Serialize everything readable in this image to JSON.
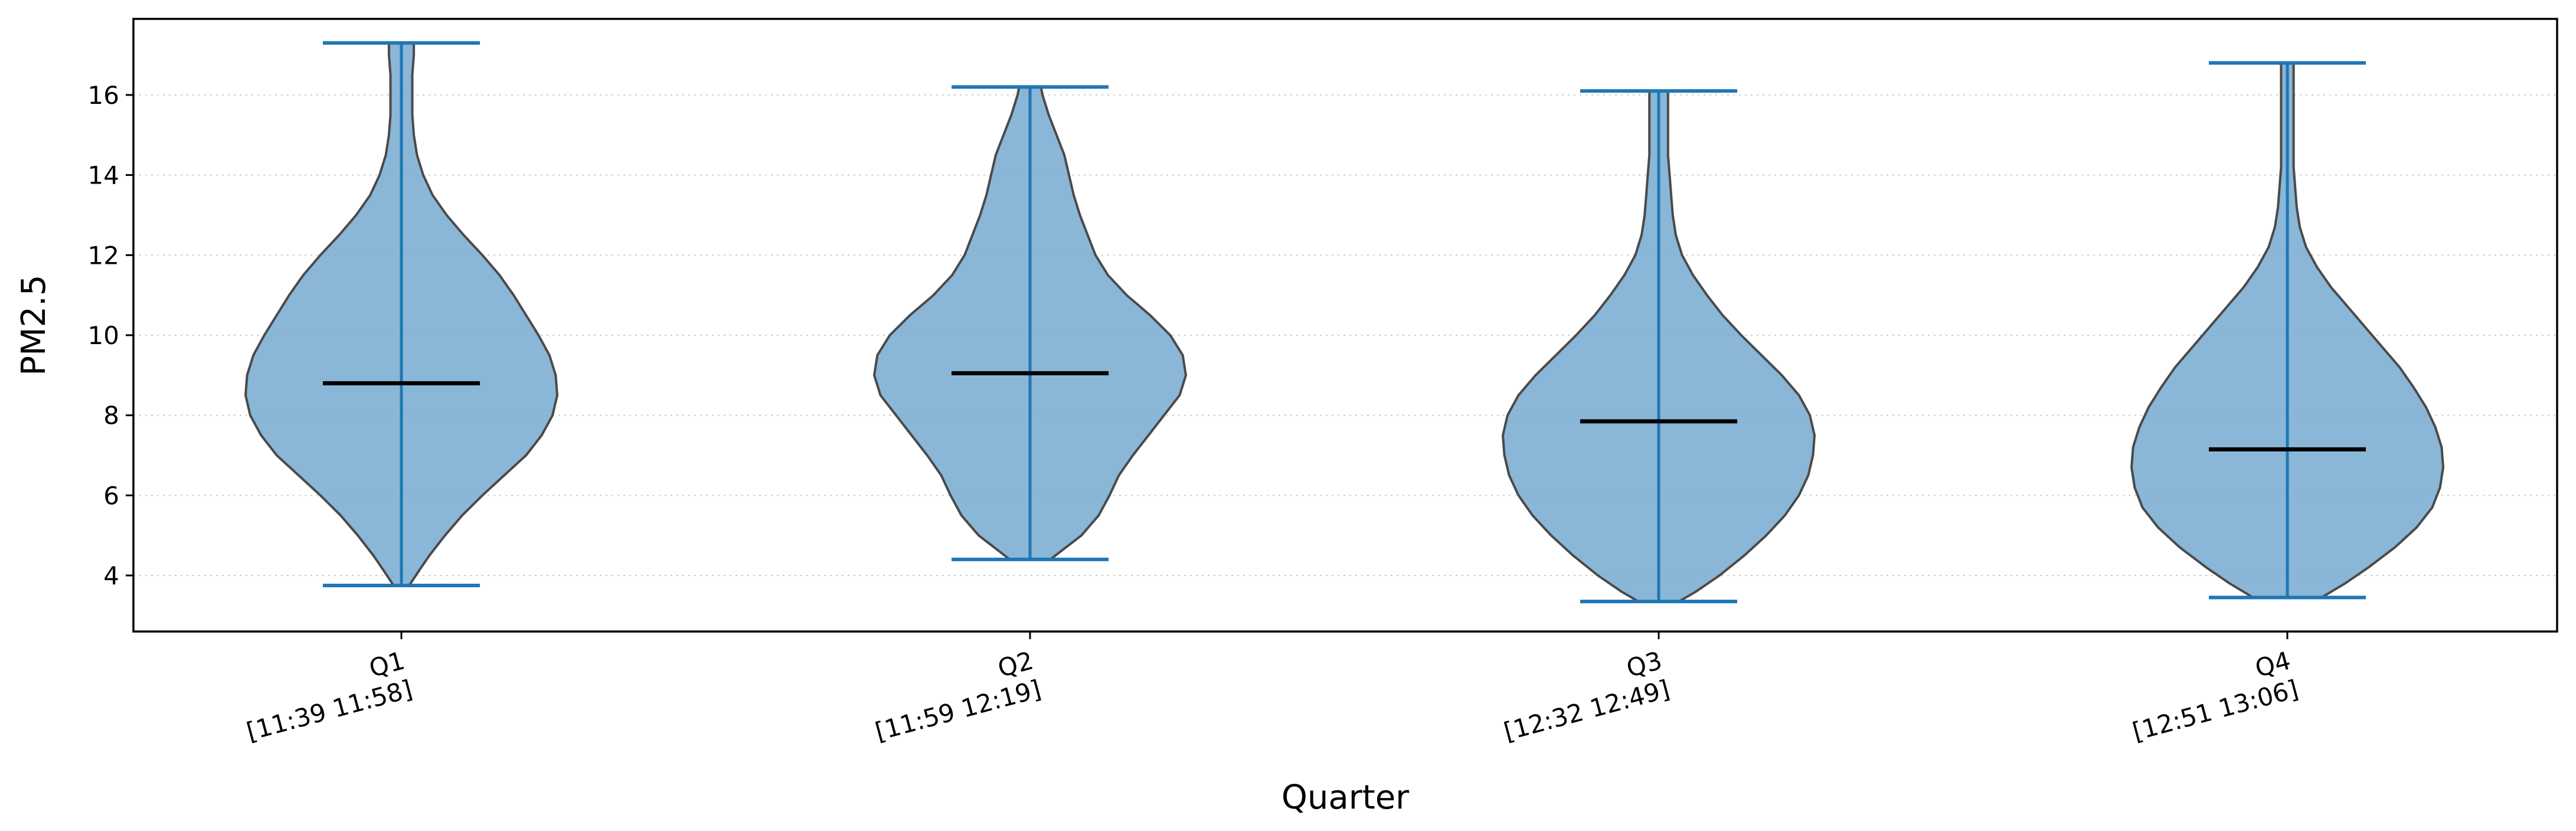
{
  "chart_data": {
    "type": "violin",
    "xlabel": "Quarter",
    "ylabel": "PM2.5",
    "ylim": [
      2.6,
      17.9
    ],
    "y_ticks": [
      4,
      6,
      8,
      10,
      12,
      14,
      16
    ],
    "grid": "horizontal-dotted",
    "fill_color": "#76a9d0",
    "edge_color": "#4a4a4a",
    "whisker_color": "#1f77b4",
    "median_color": "#000000",
    "categories": [
      {
        "label": "Q1",
        "range": "[11:39 11:58]"
      },
      {
        "label": "Q2",
        "range": "[11:59 12:19]"
      },
      {
        "label": "Q3",
        "range": "[12:32 12:49]"
      },
      {
        "label": "Q4",
        "range": "[12:51 13:06]"
      }
    ],
    "series": [
      {
        "category": "Q1",
        "min": 3.75,
        "max": 17.3,
        "median": 8.8,
        "density": [
          [
            3.75,
            0.05
          ],
          [
            4.1,
            0.11
          ],
          [
            4.5,
            0.18
          ],
          [
            5.0,
            0.28
          ],
          [
            5.5,
            0.39
          ],
          [
            6.0,
            0.52
          ],
          [
            6.5,
            0.66
          ],
          [
            7.0,
            0.8
          ],
          [
            7.5,
            0.9
          ],
          [
            8.0,
            0.97
          ],
          [
            8.5,
            1.0
          ],
          [
            9.0,
            0.99
          ],
          [
            9.5,
            0.95
          ],
          [
            10.0,
            0.88
          ],
          [
            10.5,
            0.8
          ],
          [
            11.0,
            0.72
          ],
          [
            11.5,
            0.63
          ],
          [
            12.0,
            0.52
          ],
          [
            12.5,
            0.4
          ],
          [
            13.0,
            0.29
          ],
          [
            13.5,
            0.2
          ],
          [
            14.0,
            0.14
          ],
          [
            14.5,
            0.1
          ],
          [
            15.0,
            0.08
          ],
          [
            15.5,
            0.07
          ],
          [
            16.0,
            0.07
          ],
          [
            16.5,
            0.07
          ],
          [
            17.0,
            0.08
          ],
          [
            17.3,
            0.08
          ]
        ]
      },
      {
        "category": "Q2",
        "min": 4.4,
        "max": 16.2,
        "median": 9.05,
        "density": [
          [
            4.4,
            0.13
          ],
          [
            4.7,
            0.23
          ],
          [
            5.0,
            0.33
          ],
          [
            5.5,
            0.44
          ],
          [
            6.0,
            0.51
          ],
          [
            6.5,
            0.57
          ],
          [
            7.0,
            0.66
          ],
          [
            7.5,
            0.76
          ],
          [
            8.0,
            0.86
          ],
          [
            8.5,
            0.96
          ],
          [
            9.0,
            1.0
          ],
          [
            9.5,
            0.98
          ],
          [
            10.0,
            0.9
          ],
          [
            10.5,
            0.77
          ],
          [
            11.0,
            0.62
          ],
          [
            11.5,
            0.5
          ],
          [
            12.0,
            0.42
          ],
          [
            12.5,
            0.37
          ],
          [
            13.0,
            0.32
          ],
          [
            13.5,
            0.28
          ],
          [
            14.0,
            0.25
          ],
          [
            14.5,
            0.22
          ],
          [
            15.0,
            0.17
          ],
          [
            15.5,
            0.12
          ],
          [
            16.0,
            0.08
          ],
          [
            16.2,
            0.07
          ]
        ]
      },
      {
        "category": "Q3",
        "min": 3.35,
        "max": 16.1,
        "median": 7.85,
        "density": [
          [
            3.35,
            0.13
          ],
          [
            3.6,
            0.24
          ],
          [
            4.0,
            0.39
          ],
          [
            4.5,
            0.55
          ],
          [
            5.0,
            0.69
          ],
          [
            5.5,
            0.81
          ],
          [
            6.0,
            0.9
          ],
          [
            6.5,
            0.96
          ],
          [
            7.0,
            0.99
          ],
          [
            7.5,
            1.0
          ],
          [
            8.0,
            0.97
          ],
          [
            8.5,
            0.9
          ],
          [
            9.0,
            0.79
          ],
          [
            9.5,
            0.66
          ],
          [
            10.0,
            0.53
          ],
          [
            10.5,
            0.41
          ],
          [
            11.0,
            0.31
          ],
          [
            11.5,
            0.22
          ],
          [
            12.0,
            0.15
          ],
          [
            12.5,
            0.11
          ],
          [
            13.0,
            0.09
          ],
          [
            13.5,
            0.08
          ],
          [
            14.0,
            0.07
          ],
          [
            14.5,
            0.06
          ],
          [
            15.0,
            0.06
          ],
          [
            15.5,
            0.06
          ],
          [
            16.0,
            0.06
          ],
          [
            16.1,
            0.06
          ]
        ]
      },
      {
        "category": "Q4",
        "min": 3.45,
        "max": 16.8,
        "median": 7.15,
        "density": [
          [
            3.45,
            0.22
          ],
          [
            3.8,
            0.37
          ],
          [
            4.2,
            0.52
          ],
          [
            4.7,
            0.69
          ],
          [
            5.2,
            0.83
          ],
          [
            5.7,
            0.93
          ],
          [
            6.2,
            0.98
          ],
          [
            6.7,
            1.0
          ],
          [
            7.2,
            0.99
          ],
          [
            7.7,
            0.95
          ],
          [
            8.2,
            0.89
          ],
          [
            8.7,
            0.81
          ],
          [
            9.2,
            0.72
          ],
          [
            9.7,
            0.61
          ],
          [
            10.2,
            0.5
          ],
          [
            10.7,
            0.39
          ],
          [
            11.2,
            0.28
          ],
          [
            11.7,
            0.19
          ],
          [
            12.2,
            0.12
          ],
          [
            12.7,
            0.08
          ],
          [
            13.2,
            0.06
          ],
          [
            13.7,
            0.05
          ],
          [
            14.2,
            0.04
          ],
          [
            14.7,
            0.04
          ],
          [
            15.2,
            0.04
          ],
          [
            15.7,
            0.04
          ],
          [
            16.2,
            0.04
          ],
          [
            16.8,
            0.04
          ]
        ]
      }
    ]
  }
}
